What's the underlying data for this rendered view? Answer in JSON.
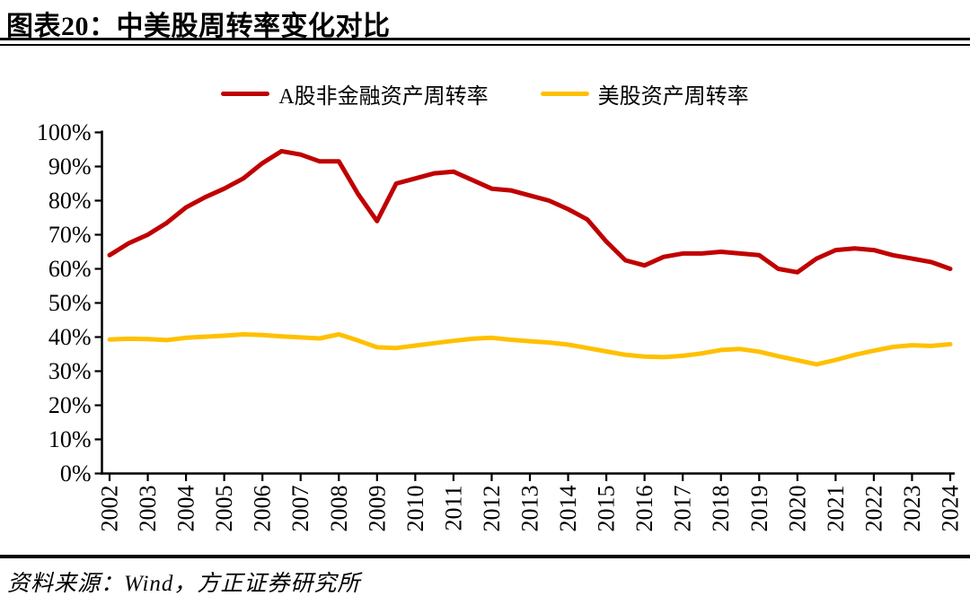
{
  "page": {
    "title": "图表20：中美股周转率变化对比",
    "source": "资料来源：Wind，方正证券研究所"
  },
  "chart_data": {
    "type": "line",
    "title": "图表20：中美股周转率变化对比",
    "x": [
      2002,
      2002.5,
      2003,
      2003.5,
      2004,
      2004.5,
      2005,
      2005.5,
      2006,
      2006.5,
      2007,
      2007.5,
      2008,
      2008.5,
      2009,
      2009.5,
      2010,
      2010.5,
      2011,
      2011.5,
      2012,
      2012.5,
      2013,
      2013.5,
      2014,
      2014.5,
      2015,
      2015.5,
      2016,
      2016.5,
      2017,
      2017.5,
      2018,
      2018.5,
      2019,
      2019.5,
      2020,
      2020.5,
      2021,
      2021.5,
      2022,
      2022.5,
      2023,
      2023.5,
      2024
    ],
    "series": [
      {
        "name": "A股非金融资产周转率",
        "color": "#C00000",
        "values": [
          64,
          67.5,
          70,
          73.5,
          78,
          81,
          83.5,
          86.5,
          91,
          94.5,
          93.5,
          91.5,
          91.5,
          82,
          74,
          85,
          86.5,
          88,
          88.5,
          86,
          83.5,
          83,
          81.5,
          80,
          77.5,
          74.5,
          68,
          62.5,
          61,
          63.5,
          64.5,
          64.5,
          65,
          64.5,
          64,
          60,
          59,
          63,
          65.5,
          66,
          65.5,
          64,
          63,
          62,
          60
        ]
      },
      {
        "name": "美股资产周转率",
        "color": "#FFC000",
        "values": [
          39.3,
          39.5,
          39.4,
          39.1,
          39.8,
          40.1,
          40.4,
          40.8,
          40.6,
          40.2,
          39.9,
          39.6,
          40.8,
          39,
          37,
          36.8,
          37.5,
          38.2,
          38.9,
          39.5,
          39.8,
          39.2,
          38.8,
          38.4,
          37.8,
          36.8,
          35.8,
          34.8,
          34.3,
          34.1,
          34.5,
          35.2,
          36.2,
          36.5,
          35.7,
          34.4,
          33.2,
          32,
          33.3,
          34.8,
          36,
          37.1,
          37.6,
          37.4,
          37.9
        ]
      }
    ],
    "xlabel": "",
    "ylabel": "",
    "ylim": [
      0,
      100
    ],
    "yticks": [
      0,
      10,
      20,
      30,
      40,
      50,
      60,
      70,
      80,
      90,
      100
    ],
    "ytick_suffix": "%",
    "xticks": [
      2002,
      2003,
      2004,
      2005,
      2006,
      2007,
      2008,
      2009,
      2010,
      2011,
      2012,
      2013,
      2014,
      2015,
      2016,
      2017,
      2018,
      2019,
      2020,
      2021,
      2022,
      2023,
      2024
    ],
    "xtick_rotation": -90,
    "grid": false,
    "legend_position": "top-center",
    "axis_color": "#000000",
    "source": "资料来源：Wind，方正证券研究所"
  }
}
